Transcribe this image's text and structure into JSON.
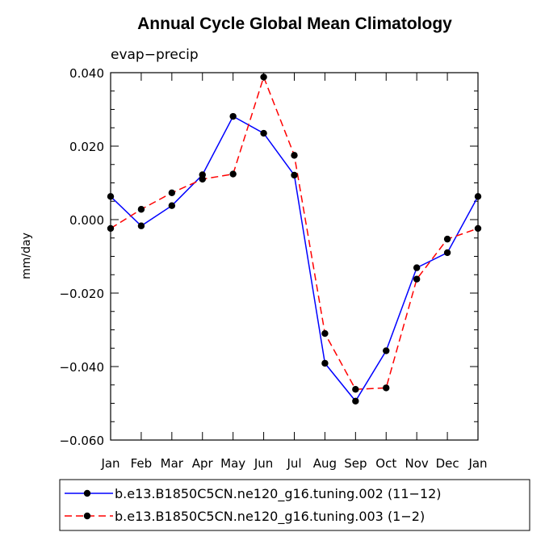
{
  "chart_data": {
    "type": "line",
    "title": "Annual Cycle Global Mean Climatology",
    "subtitle": "evap−precip",
    "xlabel": "",
    "ylabel": "mm/day",
    "categories": [
      "Jan",
      "Feb",
      "Mar",
      "Apr",
      "May",
      "Jun",
      "Jul",
      "Aug",
      "Sep",
      "Oct",
      "Nov",
      "Dec",
      "Jan"
    ],
    "ylim": [
      -0.06,
      0.04
    ],
    "yticks": [
      0.04,
      0.02,
      0.0,
      -0.02,
      -0.04,
      -0.06
    ],
    "ytick_labels": [
      "0.040",
      "0.020",
      "0.000",
      "−0.020",
      "−0.040",
      "−0.060"
    ],
    "grid": false,
    "legend_position": "bottom",
    "series": [
      {
        "name": "b.e13.B1850C5CN.ne120_g16.tuning.002 (11−12)",
        "color": "#0000ff",
        "dash": "solid",
        "values": [
          0.0063,
          -0.0017,
          0.0038,
          0.0122,
          0.0281,
          0.0235,
          0.0121,
          -0.0391,
          -0.0494,
          -0.0357,
          -0.0131,
          -0.009,
          0.0063
        ]
      },
      {
        "name": "b.e13.B1850C5CN.ne120_g16.tuning.003 (1−2)",
        "color": "#ff0000",
        "dash": "dashed",
        "values": [
          -0.0024,
          0.0028,
          0.0073,
          0.011,
          0.0124,
          0.0388,
          0.0175,
          -0.031,
          -0.0462,
          -0.0458,
          -0.0162,
          -0.0053,
          -0.0024
        ]
      }
    ]
  }
}
